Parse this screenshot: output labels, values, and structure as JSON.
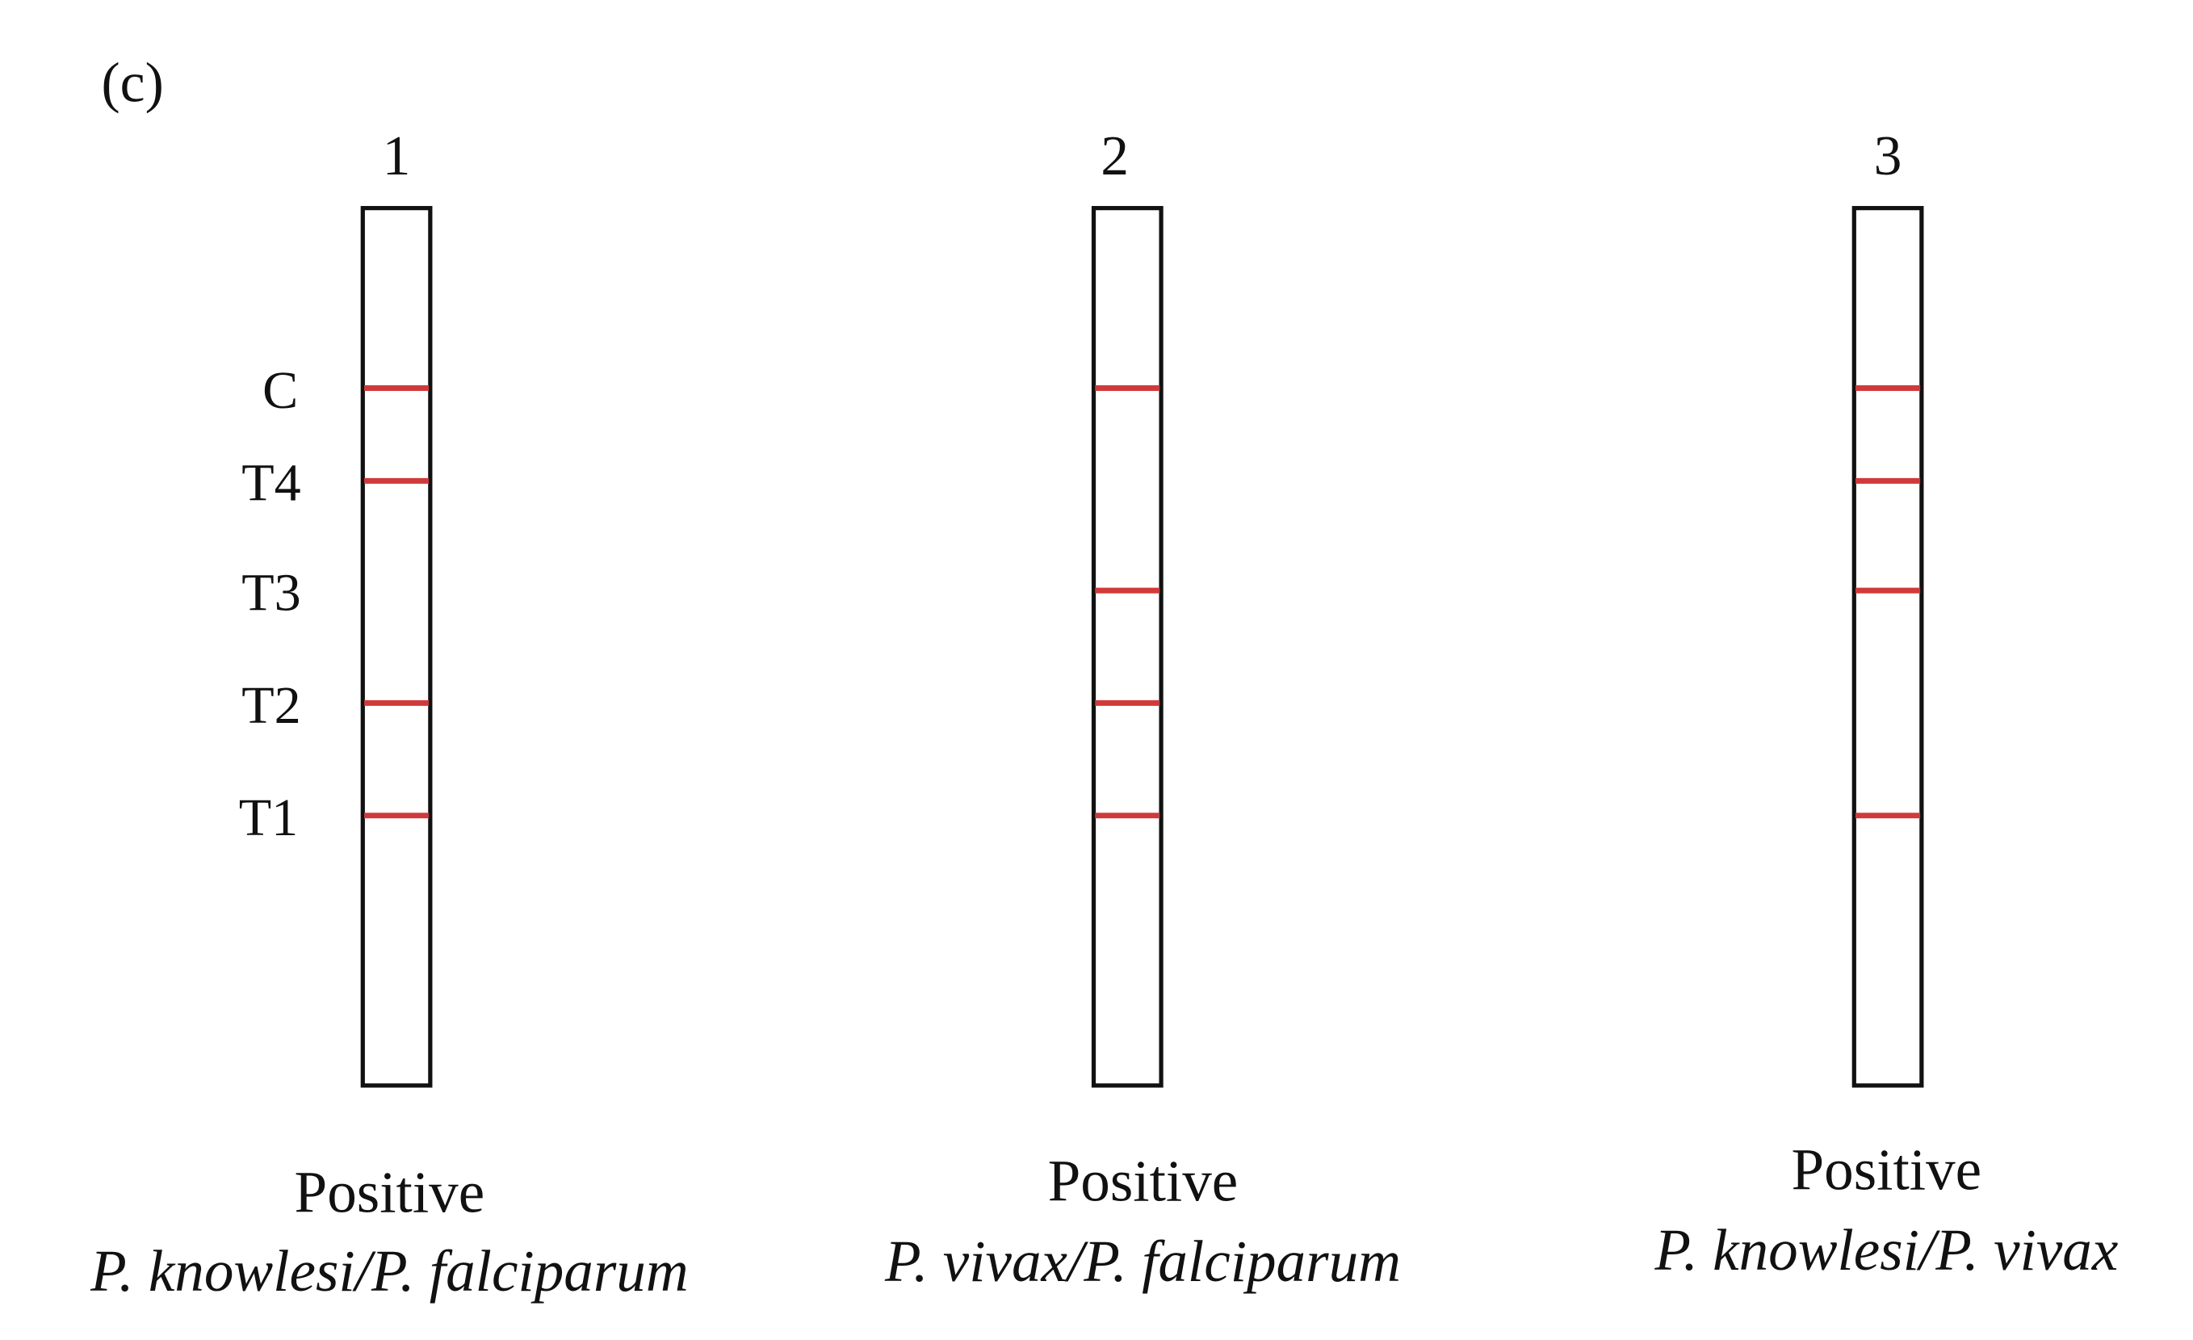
{
  "panel_label": "(c)",
  "line_labels": [
    "C",
    "T4",
    "T3",
    "T2",
    "T1"
  ],
  "strips": [
    {
      "number": "1",
      "result": "Positive",
      "species": "P. knowlesi/P. falciparum"
    },
    {
      "number": "2",
      "result": "Positive",
      "species": "P. vivax/P. falciparum"
    },
    {
      "number": "3",
      "result": "Positive",
      "species": "P. knowlesi/P. vivax"
    }
  ]
}
